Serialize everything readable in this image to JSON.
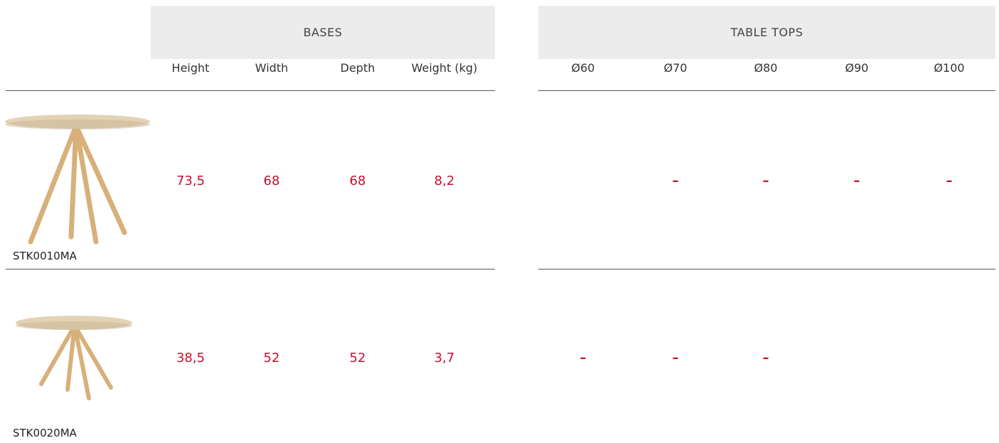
{
  "groups": {
    "bases": "BASES",
    "table_tops": "TABLE TOPS"
  },
  "columns": {
    "bases": [
      "Height",
      "Width",
      "Depth",
      "Weight (kg)"
    ],
    "table_tops": [
      "Ø60",
      "Ø70",
      "Ø80",
      "Ø90",
      "Ø100"
    ]
  },
  "rows": [
    {
      "code": "STK0010MA",
      "bases": [
        "73,5",
        "68",
        "68",
        "8,2"
      ],
      "table_tops": [
        null,
        "–",
        "–",
        "–",
        "–"
      ]
    },
    {
      "code": "STK0020MA",
      "bases": [
        "38,5",
        "52",
        "52",
        "3,7"
      ],
      "table_tops": [
        "–",
        "–",
        "–",
        null,
        null
      ]
    }
  ]
}
